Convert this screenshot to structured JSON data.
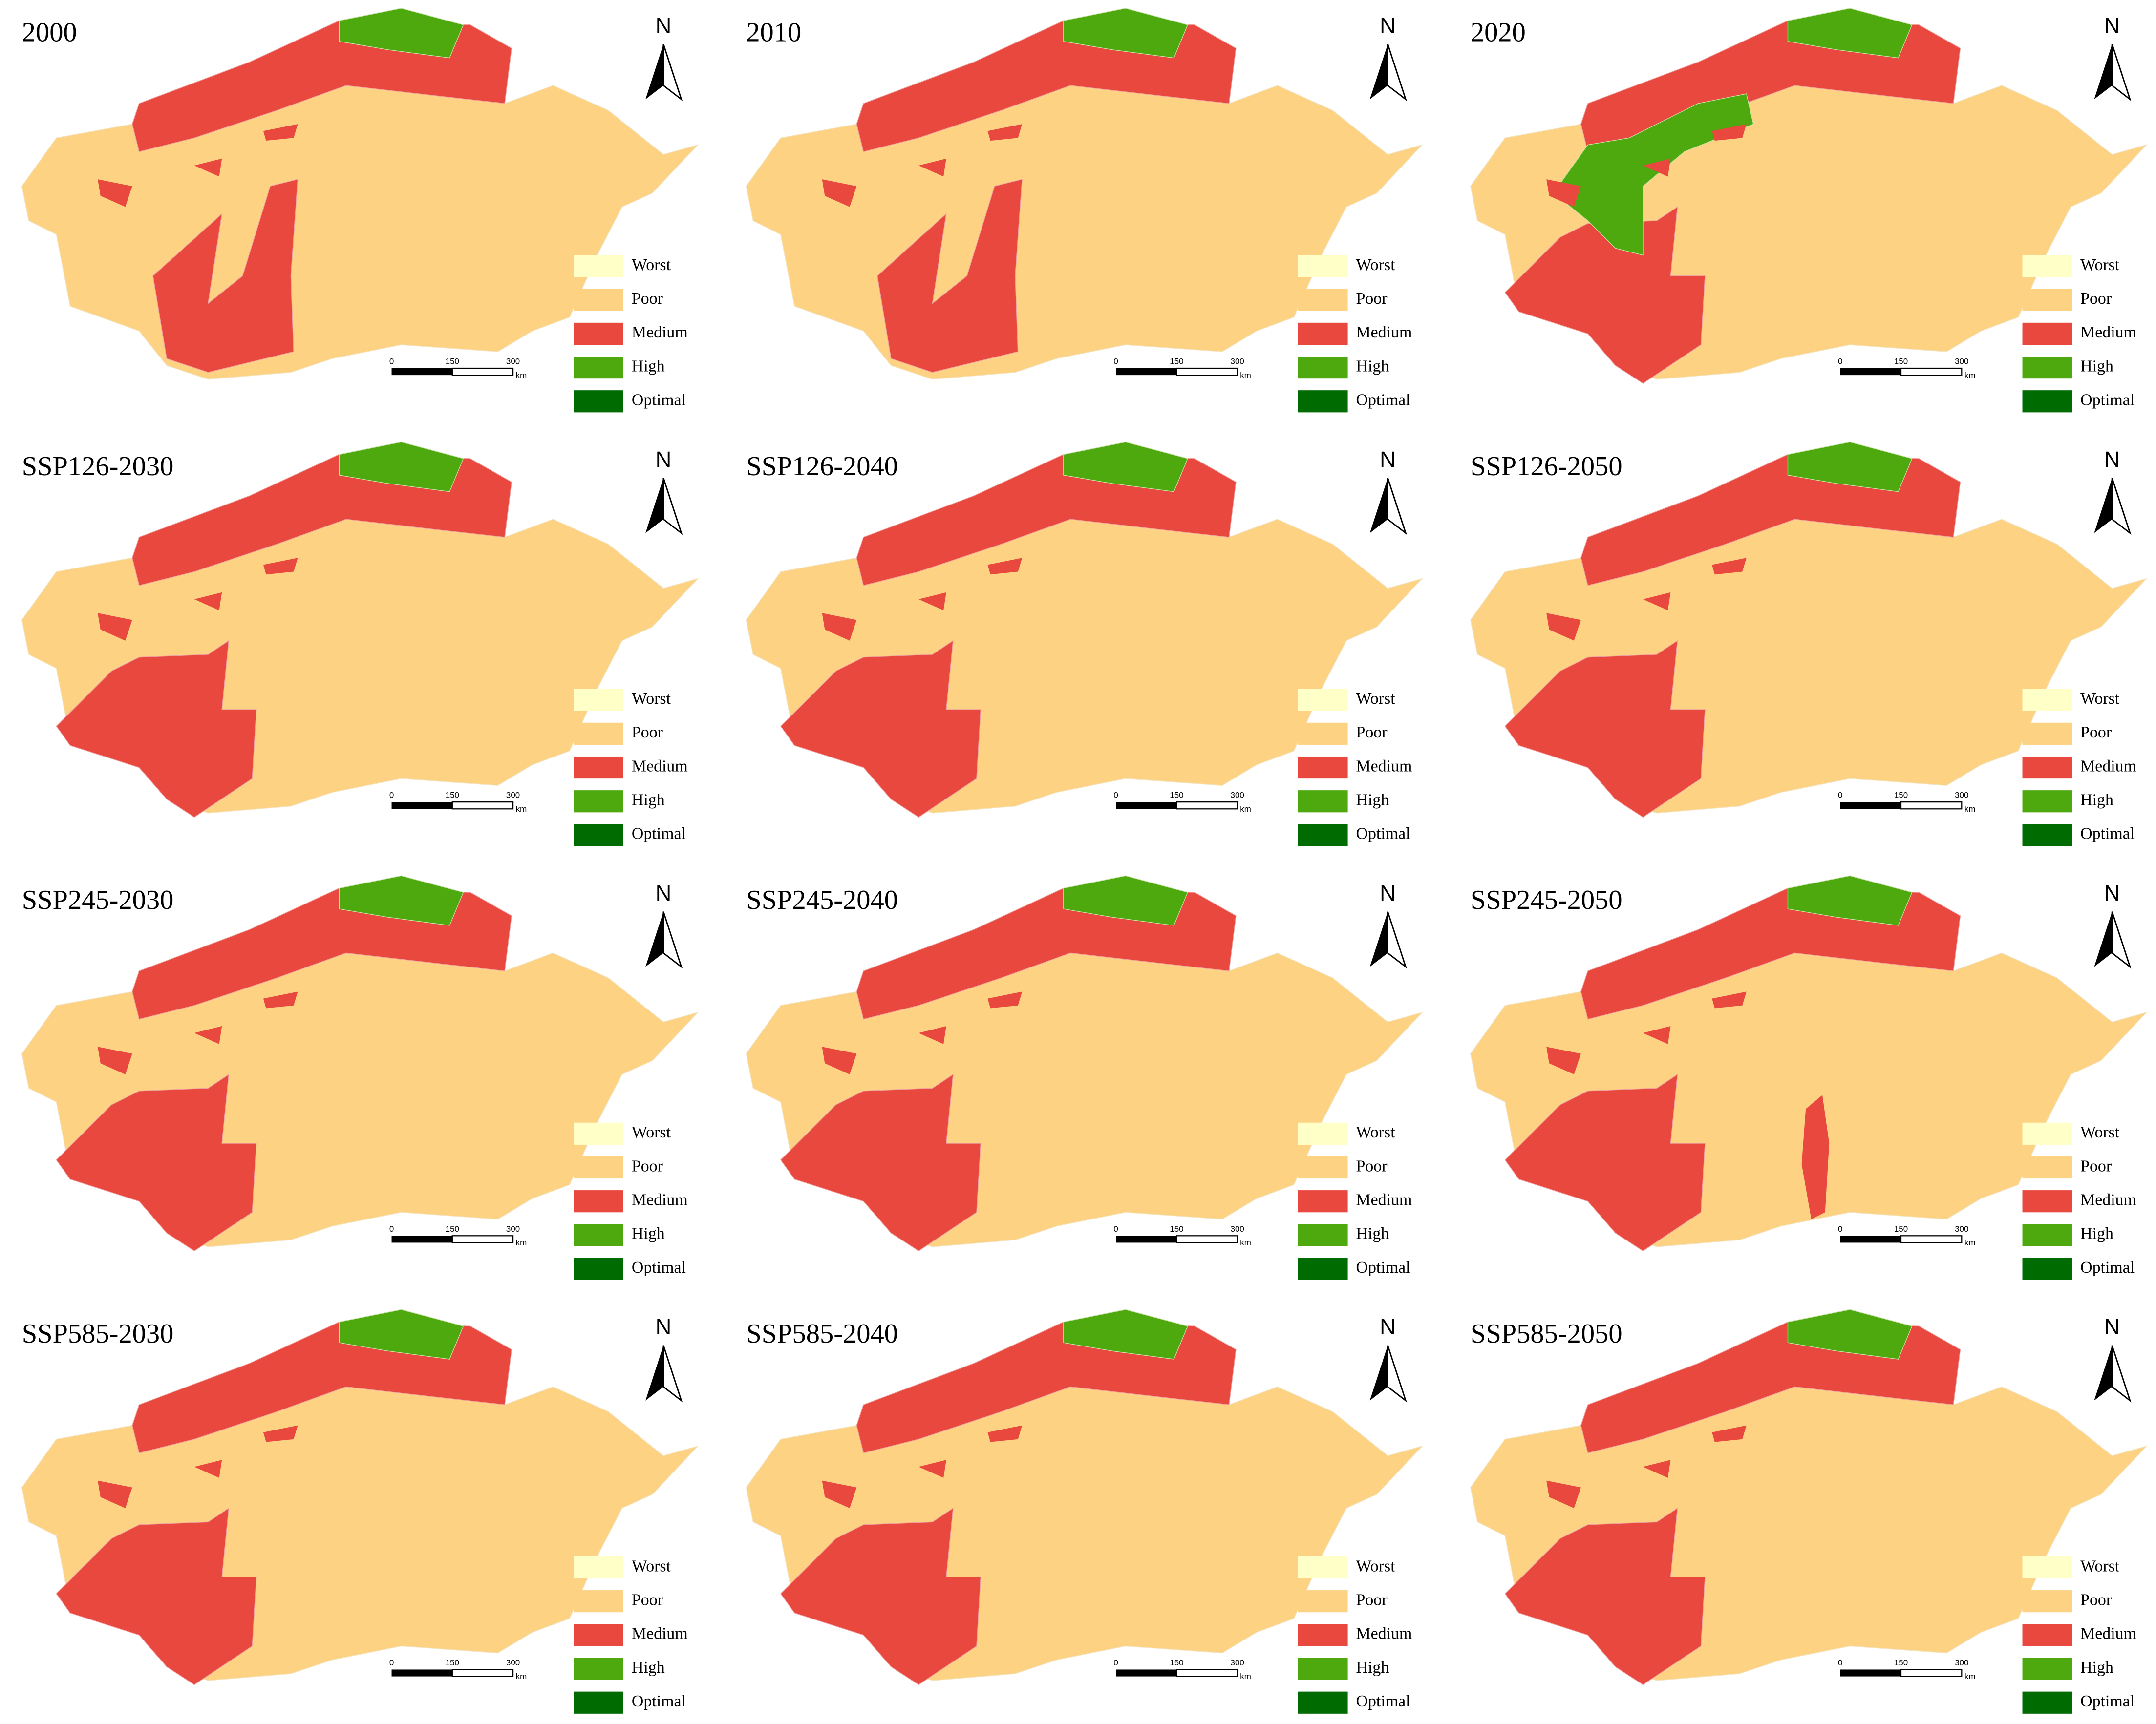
{
  "panels": [
    {
      "title": "2000"
    },
    {
      "title": "2010"
    },
    {
      "title": "2020"
    },
    {
      "title": "SSP126-2030"
    },
    {
      "title": "SSP126-2040"
    },
    {
      "title": "SSP126-2050"
    },
    {
      "title": "SSP245-2030"
    },
    {
      "title": "SSP245-2040"
    },
    {
      "title": "SSP245-2050"
    },
    {
      "title": "SSP585-2030"
    },
    {
      "title": "SSP585-2040"
    },
    {
      "title": "SSP585-2050"
    }
  ],
  "legend": [
    {
      "label": "Worst",
      "color": "#ffffc8"
    },
    {
      "label": "Poor",
      "color": "#fdd283"
    },
    {
      "label": "Medium",
      "color": "#e8483e"
    },
    {
      "label": "High",
      "color": "#4ea90f"
    },
    {
      "label": "Optimal",
      "color": "#006b00"
    }
  ],
  "scale_bar": {
    "ticks": [
      0,
      150,
      300
    ],
    "unit": "km"
  },
  "north": "N"
}
